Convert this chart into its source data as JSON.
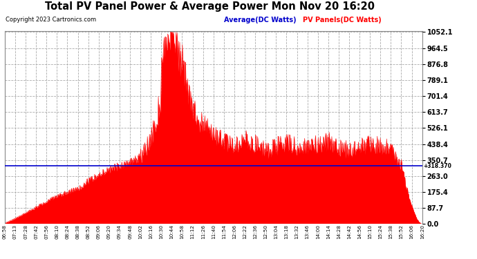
{
  "title": "Total PV Panel Power & Average Power Mon Nov 20 16:20",
  "copyright": "Copyright 2023 Cartronics.com",
  "legend_avg": "Average(DC Watts)",
  "legend_pv": "PV Panels(DC Watts)",
  "avg_line_value": 318.37,
  "avg_annotation": "+318.370",
  "ymax": 1052.1,
  "ymin": 0.0,
  "yticks": [
    0.0,
    87.7,
    175.4,
    263.0,
    350.7,
    438.4,
    526.1,
    613.7,
    701.4,
    789.1,
    876.8,
    964.5,
    1052.1
  ],
  "background_color": "#ffffff",
  "plot_bg_color": "#ffffff",
  "grid_color": "#aaaaaa",
  "fill_color": "#ff0000",
  "avg_line_color": "#0000cc",
  "title_color": "#000000",
  "copyright_color": "#000000",
  "time_labels": [
    "06:58",
    "07:13",
    "07:28",
    "07:42",
    "07:56",
    "08:10",
    "08:24",
    "08:38",
    "08:52",
    "09:06",
    "09:20",
    "09:34",
    "09:48",
    "10:02",
    "10:16",
    "10:30",
    "10:44",
    "10:58",
    "11:12",
    "11:26",
    "11:40",
    "11:54",
    "12:06",
    "12:22",
    "12:36",
    "12:50",
    "13:04",
    "13:18",
    "13:32",
    "13:46",
    "14:00",
    "14:14",
    "14:28",
    "14:42",
    "14:56",
    "15:10",
    "15:24",
    "15:38",
    "15:52",
    "16:06",
    "16:20"
  ],
  "pv_values": [
    5,
    30,
    60,
    90,
    120,
    150,
    170,
    190,
    230,
    265,
    290,
    310,
    330,
    360,
    450,
    680,
    1000,
    870,
    610,
    530,
    470,
    440,
    415,
    450,
    430,
    390,
    415,
    440,
    420,
    410,
    430,
    445,
    410,
    395,
    415,
    430,
    415,
    400,
    320,
    200,
    30
  ]
}
